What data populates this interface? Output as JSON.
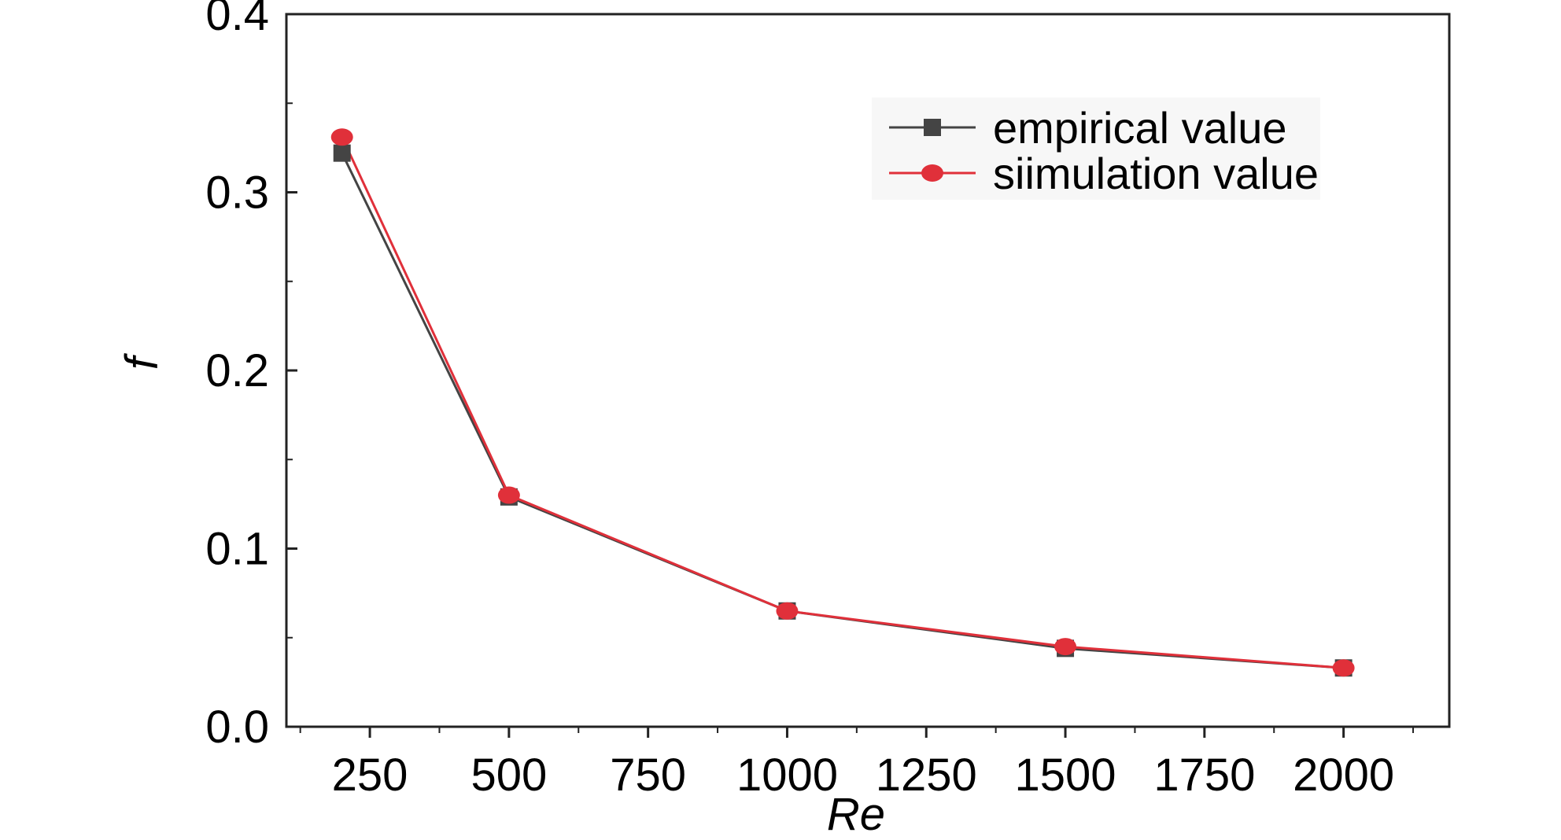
{
  "chart_data": {
    "type": "line",
    "title": "",
    "xlabel": "Re",
    "ylabel": "f",
    "x": [
      200,
      500,
      1000,
      1500,
      2000
    ],
    "series": [
      {
        "name": "empirical value",
        "color": "#444444",
        "marker": "square",
        "values": [
          0.322,
          0.129,
          0.065,
          0.044,
          0.033
        ]
      },
      {
        "name": "siimulation value",
        "color": "#e0303a",
        "marker": "circle",
        "values": [
          0.331,
          0.13,
          0.065,
          0.045,
          0.033
        ]
      }
    ],
    "xlim": [
      100,
      2190
    ],
    "ylim": [
      0,
      0.4
    ],
    "xticks": [
      250,
      500,
      750,
      1000,
      1250,
      1500,
      1750,
      2000
    ],
    "xtick_labels": [
      "250",
      "500",
      "750",
      "1000",
      "1250",
      "1500",
      "1750",
      "2000"
    ],
    "yticks": [
      0.0,
      0.1,
      0.2,
      0.3,
      0.4
    ],
    "ytick_labels": [
      "0.0",
      "0.1",
      "0.2",
      "0.3",
      "0.4"
    ],
    "grid": false,
    "legend_position": "top-right"
  }
}
